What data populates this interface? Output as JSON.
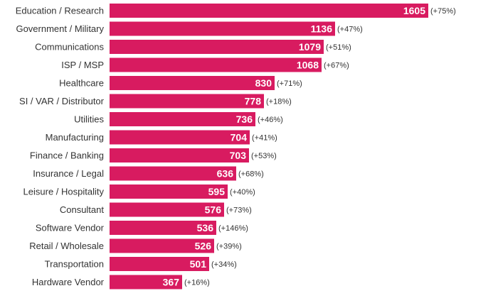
{
  "chart_data": {
    "type": "bar",
    "orientation": "horizontal",
    "categories": [
      "Education / Research",
      "Government / Military",
      "Communications",
      "ISP / MSP",
      "Healthcare",
      "SI / VAR / Distributor",
      "Utilities",
      "Manufacturing",
      "Finance / Banking",
      "Insurance / Legal",
      "Leisure / Hospitality",
      "Consultant",
      "Software Vendor",
      "Retail / Wholesale",
      "Transportation",
      "Hardware Vendor"
    ],
    "values": [
      1605,
      1136,
      1079,
      1068,
      830,
      778,
      736,
      704,
      703,
      636,
      595,
      576,
      536,
      526,
      501,
      367
    ],
    "changes": [
      "(+75%)",
      "(+47%)",
      "(+51%)",
      "(+67%)",
      "(+71%)",
      "(+18%)",
      "(+46%)",
      "(+41%)",
      "(+53%)",
      "(+68%)",
      "(+40%)",
      "(+73%)",
      "(+146%)",
      "(+39%)",
      "(+34%)",
      "(+16%)"
    ],
    "bar_color": "#d81b60",
    "xlim": [
      0,
      1605
    ],
    "grid": false,
    "legend": "none"
  }
}
